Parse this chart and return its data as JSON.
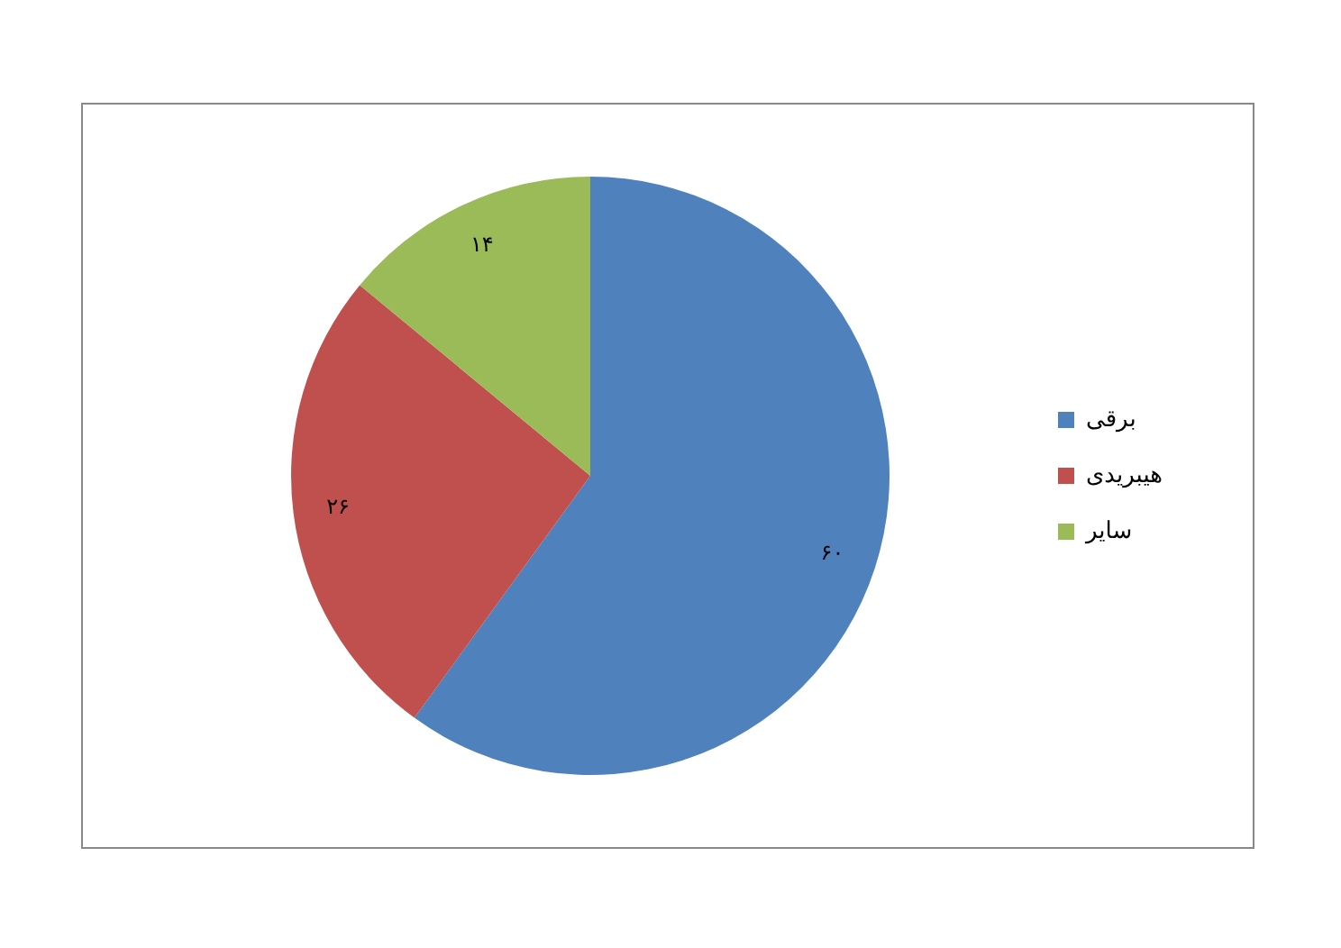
{
  "chart_data": {
    "type": "pie",
    "categories": [
      "برقی",
      "هیبریدی",
      "سایر"
    ],
    "values": [
      60,
      26,
      14
    ],
    "colors": [
      "#4f81bd",
      "#c0504d",
      "#9bbb59"
    ],
    "value_labels": [
      "۶۰",
      "۲۶",
      "۱۴"
    ],
    "legend": "right"
  }
}
